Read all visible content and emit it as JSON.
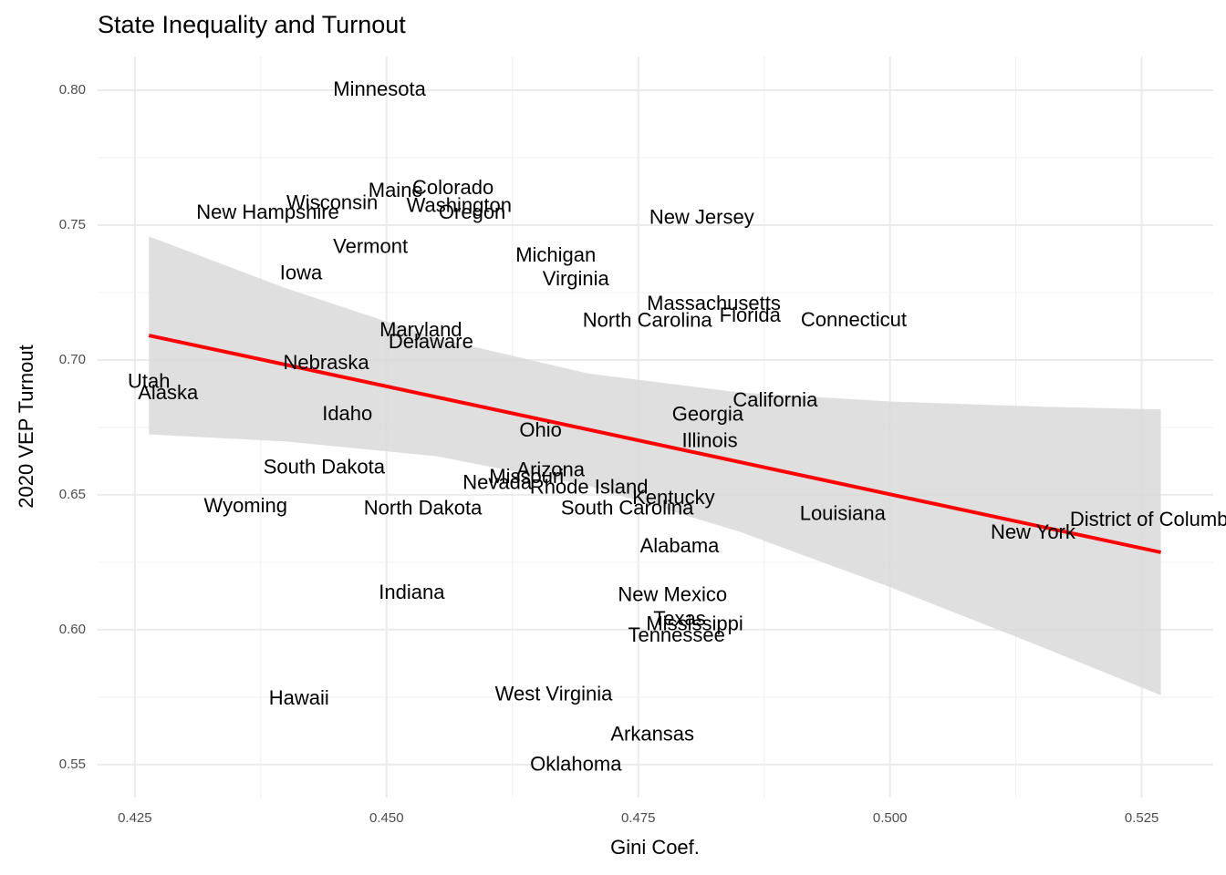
{
  "chart_data": {
    "type": "scatter",
    "title": "State Inequality and Turnout",
    "x_label": "Gini Coef.",
    "y_label": "2020 VEP Turnout",
    "labels": [
      "Minnesota",
      "Colorado",
      "Maine",
      "Wisconsin",
      "Washington",
      "Oregon",
      "New Hampshire",
      "New Jersey",
      "Vermont",
      "Michigan",
      "Iowa",
      "Virginia",
      "Massachusetts",
      "Florida",
      "North Carolina",
      "Connecticut",
      "Maryland",
      "Delaware",
      "Nebraska",
      "Utah",
      "Alaska",
      "California",
      "Idaho",
      "Georgia",
      "Ohio",
      "Illinois",
      "South Dakota",
      "Arizona",
      "Missouri",
      "Nevada",
      "Rhode Island",
      "Kentucky",
      "Wyoming",
      "North Dakota",
      "South Carolina",
      "Louisiana",
      "District of Columbia",
      "New York",
      "Alabama",
      "Indiana",
      "New Mexico",
      "Texas",
      "Mississippi",
      "Tennessee",
      "West Virginia",
      "Hawaii",
      "Arkansas",
      "Oklahoma"
    ],
    "x": [
      0.4493,
      0.4566,
      0.4509,
      0.4446,
      0.4572,
      0.4585,
      0.4382,
      0.4813,
      0.4484,
      0.4668,
      0.4415,
      0.4688,
      0.4825,
      0.4861,
      0.4759,
      0.4964,
      0.4534,
      0.4544,
      0.444,
      0.4264,
      0.4283,
      0.4886,
      0.4461,
      0.4819,
      0.4653,
      0.4821,
      0.4438,
      0.4663,
      0.4639,
      0.461,
      0.4701,
      0.4785,
      0.436,
      0.4536,
      0.4739,
      0.4953,
      0.5265,
      0.5142,
      0.4791,
      0.4525,
      0.4784,
      0.4791,
      0.4806,
      0.4788,
      0.4666,
      0.4413,
      0.4764,
      0.4688
    ],
    "y": [
      0.8,
      0.7635,
      0.7625,
      0.7578,
      0.7568,
      0.7544,
      0.7544,
      0.7524,
      0.7416,
      0.7385,
      0.7318,
      0.7297,
      0.7206,
      0.7162,
      0.7142,
      0.7145,
      0.7108,
      0.7064,
      0.6986,
      0.6916,
      0.6875,
      0.6848,
      0.6797,
      0.6794,
      0.6736,
      0.6696,
      0.6598,
      0.6588,
      0.6564,
      0.6541,
      0.6524,
      0.6486,
      0.6456,
      0.6446,
      0.6446,
      0.6426,
      0.6405,
      0.6358,
      0.6307,
      0.6135,
      0.6125,
      0.6037,
      0.6017,
      0.5976,
      0.5757,
      0.5743,
      0.5608,
      0.5497
    ],
    "fit": {
      "color": "#ff0000",
      "x": [
        0.4264,
        0.5269
      ],
      "y": [
        0.7091,
        0.6287
      ]
    },
    "band": {
      "color": "#d9d9d9",
      "x": [
        0.4264,
        0.44,
        0.455,
        0.47,
        0.485,
        0.5,
        0.515,
        0.5269
      ],
      "upper": [
        0.7458,
        0.7266,
        0.7081,
        0.695,
        0.688,
        0.6846,
        0.6827,
        0.6817
      ],
      "lower": [
        0.6724,
        0.6698,
        0.6643,
        0.6534,
        0.6364,
        0.6158,
        0.5937,
        0.5757
      ]
    },
    "xlim": [
      0.4213,
      0.5321
    ],
    "ylim": [
      0.5378,
      0.8125
    ],
    "xticks": [
      0.425,
      {
        "value": 0.45,
        "label": "0.450"
      },
      0.475,
      {
        "value": 0.5,
        "label": "0.500"
      },
      0.525
    ],
    "yticks": [
      0.55,
      {
        "value": 0.6,
        "label": "0.60"
      },
      0.65,
      {
        "value": 0.7,
        "label": "0.70"
      },
      0.75,
      {
        "value": 0.8,
        "label": "0.80"
      }
    ],
    "grid": true
  }
}
